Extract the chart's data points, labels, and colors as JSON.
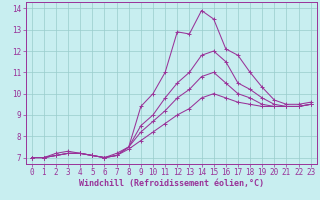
{
  "xlabel": "Windchill (Refroidissement éolien,°C)",
  "xlim": [
    -0.5,
    23.5
  ],
  "ylim": [
    6.7,
    14.3
  ],
  "xticks": [
    0,
    1,
    2,
    3,
    4,
    5,
    6,
    7,
    8,
    9,
    10,
    11,
    12,
    13,
    14,
    15,
    16,
    17,
    18,
    19,
    20,
    21,
    22,
    23
  ],
  "yticks": [
    7,
    8,
    9,
    10,
    11,
    12,
    13,
    14
  ],
  "bg_color": "#c8eef0",
  "line_color": "#993399",
  "grid_color": "#99cccc",
  "series": [
    [
      7.0,
      7.0,
      7.2,
      7.3,
      7.2,
      7.1,
      7.0,
      7.2,
      7.5,
      9.4,
      10.0,
      11.0,
      12.9,
      12.8,
      13.9,
      13.5,
      12.1,
      11.8,
      11.0,
      10.3,
      9.7,
      9.5,
      9.5,
      9.6
    ],
    [
      7.0,
      7.0,
      7.1,
      7.2,
      7.2,
      7.1,
      7.0,
      7.1,
      7.5,
      8.5,
      9.0,
      9.8,
      10.5,
      11.0,
      11.8,
      12.0,
      11.5,
      10.5,
      10.2,
      9.8,
      9.5,
      9.4,
      9.4,
      9.5
    ],
    [
      7.0,
      7.0,
      7.1,
      7.2,
      7.2,
      7.1,
      7.0,
      7.1,
      7.5,
      8.2,
      8.7,
      9.2,
      9.8,
      10.2,
      10.8,
      11.0,
      10.5,
      10.0,
      9.8,
      9.5,
      9.4,
      9.4,
      9.4,
      9.5
    ],
    [
      7.0,
      7.0,
      7.1,
      7.2,
      7.2,
      7.1,
      7.0,
      7.1,
      7.4,
      7.8,
      8.2,
      8.6,
      9.0,
      9.3,
      9.8,
      10.0,
      9.8,
      9.6,
      9.5,
      9.4,
      9.4,
      9.4,
      9.4,
      9.5
    ]
  ],
  "tick_fontsize": 5.5,
  "xlabel_fontsize": 6.0,
  "linewidth": 0.75,
  "markersize": 2.5
}
